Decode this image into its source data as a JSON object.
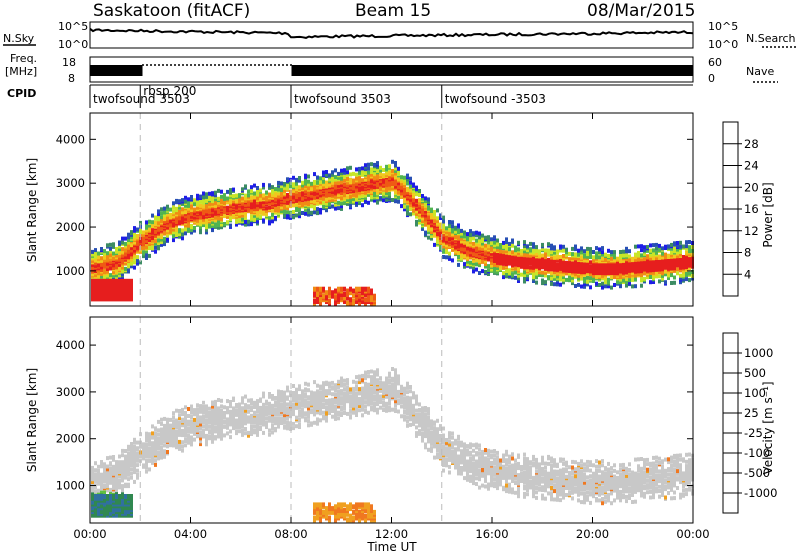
{
  "header": {
    "station": "Saskatoon (fitACF)",
    "beam": "Beam 15",
    "date": "08/Mar/2015"
  },
  "top_panels": {
    "nsky_label": "N.Sky",
    "nsky_ticks": [
      "10^5",
      "10^0"
    ],
    "nsearch_label": "N.Search",
    "nsearch_ticks": [
      "10^5",
      "10^0"
    ],
    "freq_label_1": "Freq.",
    "freq_label_2": "[MHz]",
    "freq_ticks": [
      "18",
      "8"
    ],
    "nave_label": "Nave",
    "nave_ticks": [
      "60",
      "0"
    ],
    "cpid_label": "CPID",
    "cpid_segments": [
      {
        "label": "twofsound 3503",
        "start_hour": 0
      },
      {
        "label": "rbsp 200",
        "start_hour": 2
      },
      {
        "label": "twofsound 3503",
        "start_hour": 8
      },
      {
        "label": "twofsound -3503",
        "start_hour": 14
      }
    ]
  },
  "colors": {
    "power_scale": [
      "#1e1ee6",
      "#2850b4",
      "#3c8c64",
      "#50b450",
      "#c8e628",
      "#f0c81e",
      "#f08c14",
      "#ef5a14",
      "#e61e1e",
      "#cc0000"
    ],
    "velocity_scale": [
      "#2030b0",
      "#3070a0",
      "#308850",
      "#60c040",
      "#c8c8c8",
      "#c8c8c8",
      "#f0a020",
      "#f07820",
      "#f04020",
      "#d80000"
    ]
  },
  "chart_data": [
    {
      "type": "heatmap",
      "panel": "power",
      "ylabel": "Slant Range [km]",
      "y_ticks": [
        "1000",
        "2000",
        "3000",
        "4000"
      ],
      "ylim": [
        200,
        4600
      ],
      "xlim_hours": [
        0,
        24
      ],
      "colorbar_label": "Power [dB]",
      "colorbar_ticks": [
        "4",
        "8",
        "12",
        "16",
        "20",
        "24",
        "28"
      ],
      "colorbar_range": [
        0,
        32
      ],
      "main_band_km": [
        [
          0,
          1100
        ],
        [
          1,
          1200
        ],
        [
          2,
          1700
        ],
        [
          3,
          2100
        ],
        [
          4,
          2300
        ],
        [
          5,
          2400
        ],
        [
          6,
          2500
        ],
        [
          7,
          2550
        ],
        [
          8,
          2700
        ],
        [
          9,
          2800
        ],
        [
          10,
          2900
        ],
        [
          11,
          3000
        ],
        [
          12,
          3100
        ],
        [
          13,
          2500
        ],
        [
          14,
          1800
        ],
        [
          15,
          1500
        ],
        [
          16,
          1350
        ],
        [
          17,
          1250
        ],
        [
          18,
          1200
        ],
        [
          19,
          1150
        ],
        [
          20,
          1100
        ],
        [
          21,
          1100
        ],
        [
          22,
          1150
        ],
        [
          23,
          1200
        ],
        [
          24,
          1250
        ]
      ],
      "strong_echo_km": [
        [
          0.3,
          550
        ],
        [
          1.5,
          550
        ]
      ],
      "secondary_echo_km": [
        [
          8.8,
          450
        ],
        [
          11.3,
          450
        ]
      ]
    },
    {
      "type": "heatmap",
      "panel": "velocity",
      "ylabel": "Slant Range [km]",
      "y_ticks": [
        "1000",
        "2000",
        "3000",
        "4000"
      ],
      "ylim": [
        200,
        4600
      ],
      "xlim_hours": [
        0,
        24
      ],
      "colorbar_label": "Velocity [m s⁻¹]",
      "colorbar_ticks": [
        "1000",
        "500",
        "100",
        "25",
        "-25",
        "-100",
        "-500",
        "-1000"
      ],
      "xlabel": "Time UT",
      "x_ticks": [
        "00:00",
        "04:00",
        "08:00",
        "12:00",
        "16:00",
        "20:00",
        "00:00"
      ],
      "x_tick_hours": [
        0,
        4,
        8,
        12,
        16,
        20,
        24
      ]
    }
  ]
}
